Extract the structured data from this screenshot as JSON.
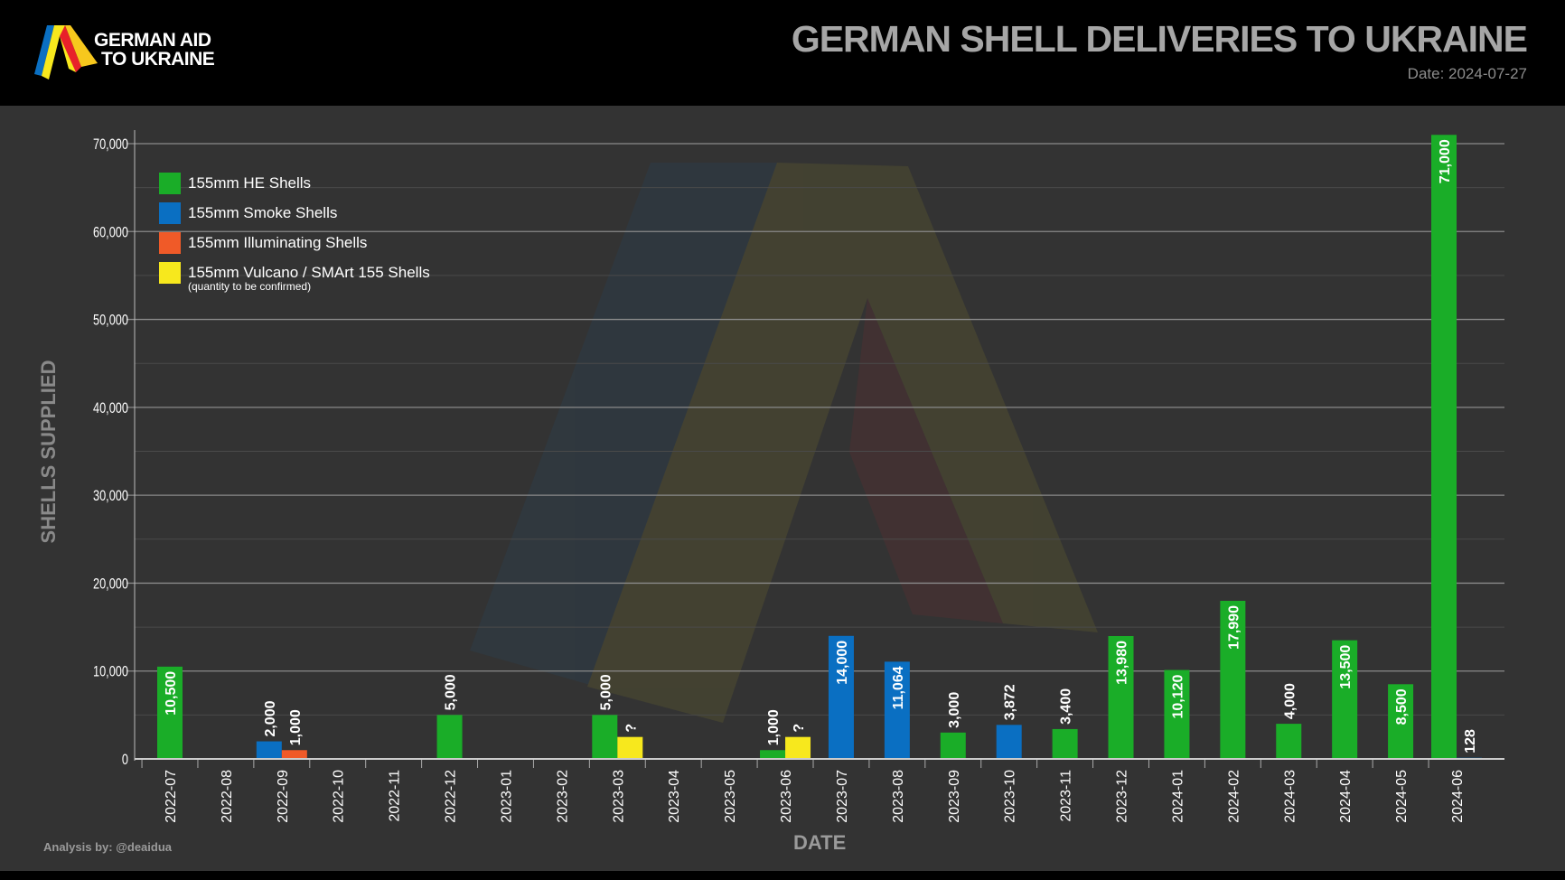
{
  "header": {
    "logo_text_line1": "GERMAN AID",
    "logo_text_line2": "TO UKRAINE",
    "title": "GERMAN SHELL DELIVERIES TO UKRAINE",
    "date": "Date: 2024-07-27"
  },
  "footer": {
    "credit": "Analysis by: @deaidua"
  },
  "colors": {
    "he": "#1aad28",
    "smoke": "#0a6fc2",
    "illuminating": "#f05a28",
    "vulcano": "#f7e81d",
    "background": "#333333",
    "header": "#000000"
  },
  "chart_data": {
    "type": "bar",
    "title": "GERMAN SHELL DELIVERIES TO UKRAINE",
    "xlabel": "DATE",
    "ylabel": "SHELLS SUPPLIED",
    "ylim": [
      0,
      70000
    ],
    "yticks": [
      "0",
      "10,000",
      "20,000",
      "30,000",
      "40,000",
      "50,000",
      "60,000",
      "70,000"
    ],
    "grid": true,
    "legend_position": "top-left",
    "legend_note": "(quantity to be confirmed)",
    "categories": [
      "2022-07",
      "2022-08",
      "2022-09",
      "2022-10",
      "2022-11",
      "2022-12",
      "2023-01",
      "2023-02",
      "2023-03",
      "2023-04",
      "2023-05",
      "2023-06",
      "2023-07",
      "2023-08",
      "2023-09",
      "2023-10",
      "2023-11",
      "2023-12",
      "2024-01",
      "2024-02",
      "2024-03",
      "2024-04",
      "2024-05",
      "2024-06"
    ],
    "series": [
      {
        "name": "155mm HE Shells",
        "color": "#1aad28",
        "values": [
          10500,
          null,
          null,
          null,
          null,
          5000,
          null,
          null,
          5000,
          null,
          null,
          1000,
          null,
          null,
          3000,
          null,
          3400,
          13980,
          10120,
          17990,
          4000,
          13500,
          8500,
          71000
        ]
      },
      {
        "name": "155mm Smoke Shells",
        "color": "#0a6fc2",
        "values": [
          null,
          null,
          2000,
          null,
          null,
          null,
          null,
          null,
          null,
          null,
          null,
          null,
          14000,
          11064,
          null,
          3872,
          null,
          null,
          null,
          null,
          null,
          null,
          null,
          128
        ]
      },
      {
        "name": "155mm Illuminating Shells",
        "color": "#f05a28",
        "values": [
          null,
          null,
          1000,
          null,
          null,
          null,
          null,
          null,
          null,
          null,
          null,
          null,
          null,
          null,
          null,
          null,
          null,
          null,
          null,
          null,
          null,
          null,
          null,
          null
        ]
      },
      {
        "name": "155mm Vulcano / SMArt 155 Shells",
        "color": "#f7e81d",
        "values": [
          null,
          null,
          null,
          null,
          null,
          null,
          null,
          null,
          "?",
          null,
          null,
          "?",
          null,
          null,
          null,
          null,
          null,
          null,
          null,
          null,
          null,
          null,
          null,
          null
        ]
      }
    ]
  }
}
